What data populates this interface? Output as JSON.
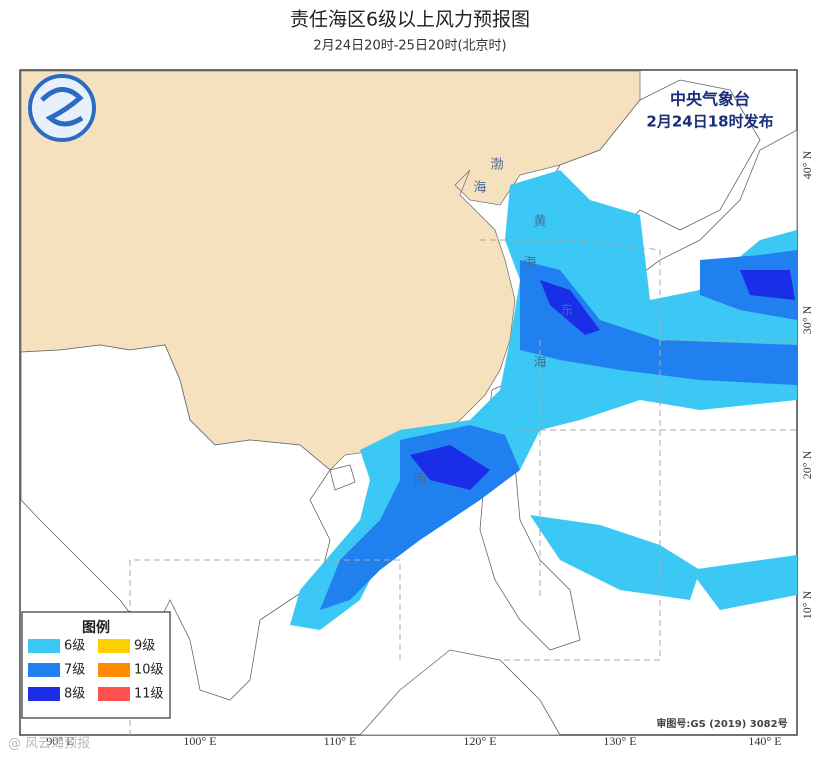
{
  "header": {
    "title": "责任海区6级以上风力预报图",
    "subtitle": "2月24日20时-25日20时(北京时)"
  },
  "issuer": {
    "name": "中央气象台",
    "time": "2月24日18时发布"
  },
  "legend": {
    "title": "图例",
    "items": [
      {
        "label": "6级",
        "color": "#3cc8f4"
      },
      {
        "label": "9级",
        "color": "#ffd000"
      },
      {
        "label": "7级",
        "color": "#2080f0"
      },
      {
        "label": "10级",
        "color": "#ff8c00"
      },
      {
        "label": "8级",
        "color": "#1a2ee8"
      },
      {
        "label": "11级",
        "color": "#ff5050"
      }
    ]
  },
  "lon_labels": [
    "90° E",
    "100° E",
    "110° E",
    "120° E",
    "130° E",
    "140° E"
  ],
  "lat_labels": [
    "40° N",
    "30° N",
    "20° N",
    "10° N"
  ],
  "sea_labels": [
    "渤",
    "海",
    "黄",
    "海",
    "东",
    "海",
    "南"
  ],
  "map_approval": "审图号:GS (2019) 3082号",
  "watermark": "@ 风云海预报"
}
